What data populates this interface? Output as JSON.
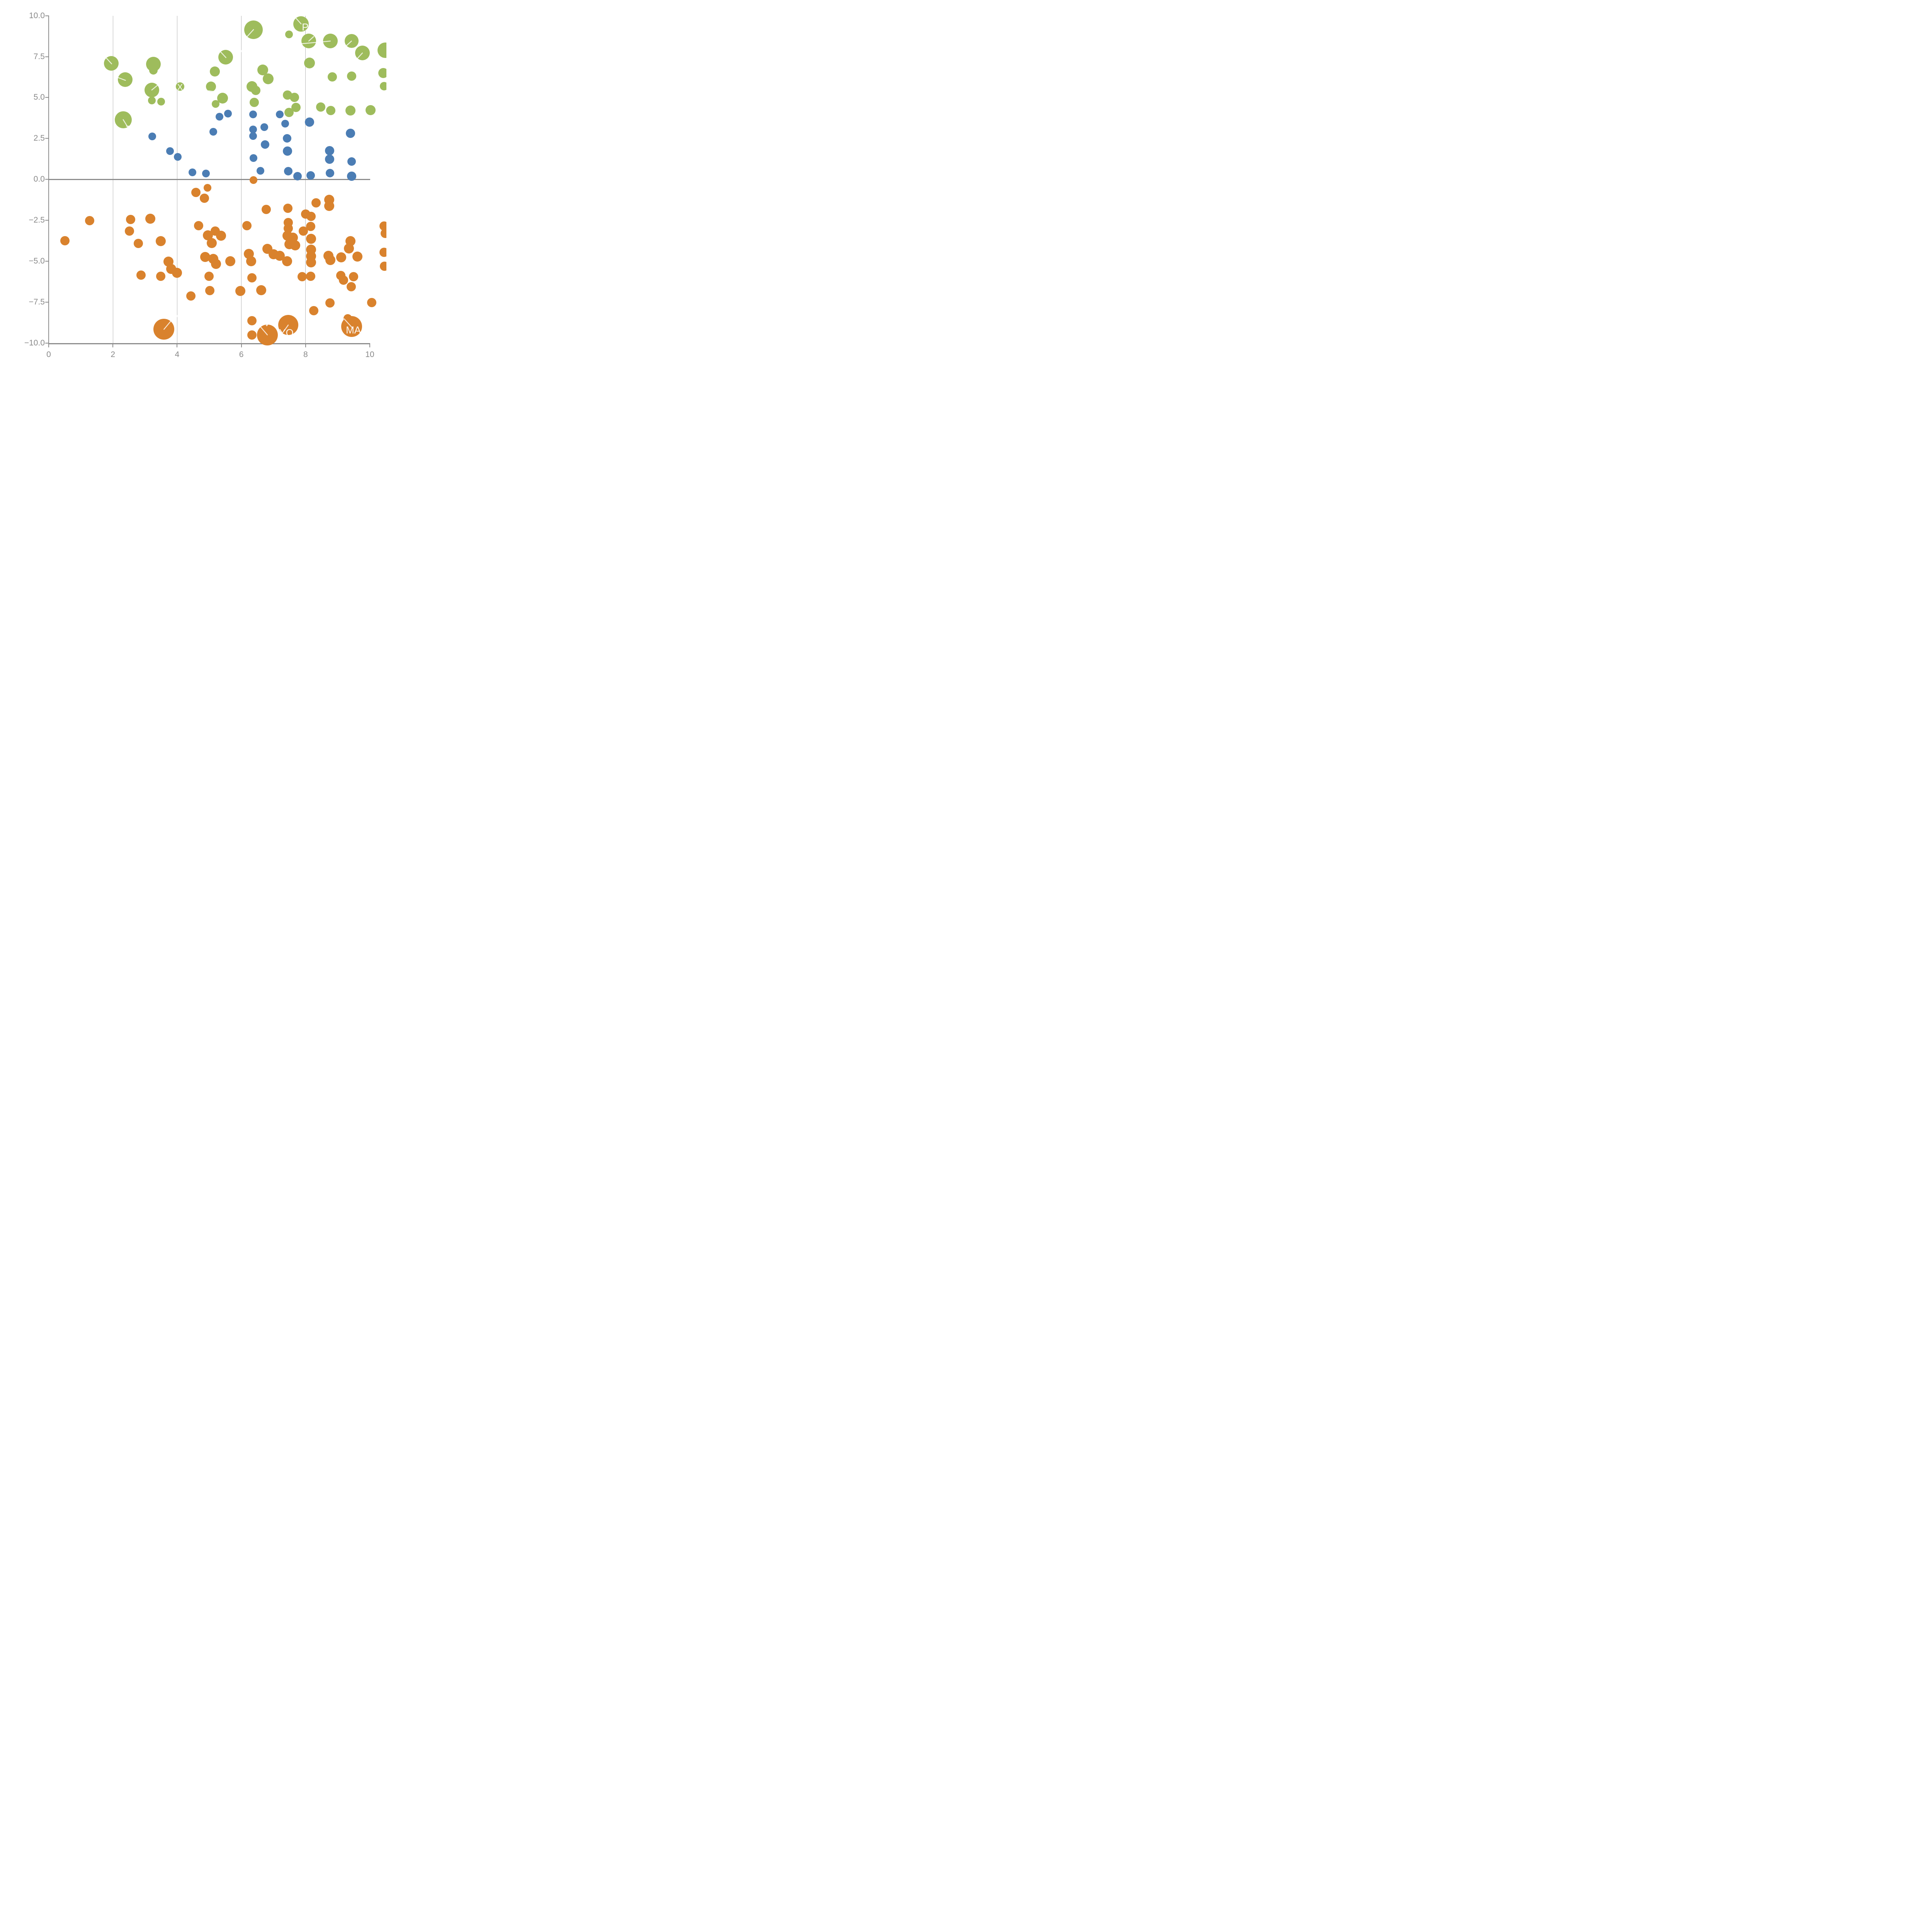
{
  "chart_data": {
    "type": "scatter",
    "title": "",
    "xlabel": "",
    "ylabel": "",
    "xlim": [
      0,
      10
    ],
    "ylim": [
      -10,
      10
    ],
    "x_ticks": [
      "0",
      "2",
      "4",
      "6",
      "8",
      "10"
    ],
    "x_tick_values": [
      0,
      2,
      4,
      6,
      8,
      10
    ],
    "y_ticks": [
      "10.0",
      "7.5",
      "5.0",
      "2.5",
      "0.0",
      "−2.5",
      "−5.0",
      "−7.5",
      "−10.0"
    ],
    "y_tick_values": [
      10,
      7.5,
      5,
      2.5,
      0,
      -2.5,
      -5,
      -7.5,
      -10
    ],
    "gridlines_x": [
      2,
      4,
      6,
      8
    ],
    "zero_line_y": 0,
    "grid": "vertical-only",
    "legend": "none",
    "colors": {
      "green": "#9ebc5c",
      "blue": "#4b7db4",
      "orange": "#d9822d",
      "axis": "#8c8c8c",
      "grid": "#b4b4b4",
      "label_white": "#ffffff"
    },
    "series": [
      {
        "name": "green-cluster",
        "color": "#9ebc5c",
        "points": [
          [
            1.95,
            7.09,
            19
          ],
          [
            2.38,
            6.09,
            19
          ],
          [
            2.32,
            3.65,
            22
          ],
          [
            3.26,
            7.04,
            19
          ],
          [
            3.26,
            6.66,
            11
          ],
          [
            3.21,
            5.46,
            19
          ],
          [
            3.21,
            4.82,
            10
          ],
          [
            3.5,
            4.75,
            10
          ],
          [
            4.09,
            5.67,
            11
          ],
          [
            5.2,
            4.6,
            10
          ],
          [
            5.51,
            7.47,
            19
          ],
          [
            5.18,
            6.58,
            13
          ],
          [
            5.06,
            5.67,
            13
          ],
          [
            5.41,
            4.97,
            14
          ],
          [
            6.38,
            9.15,
            24
          ],
          [
            6.67,
            6.69,
            14
          ],
          [
            6.83,
            6.14,
            14
          ],
          [
            6.33,
            5.67,
            14
          ],
          [
            6.45,
            5.44,
            12
          ],
          [
            6.4,
            4.71,
            12
          ],
          [
            7.48,
            8.85,
            10
          ],
          [
            7.86,
            9.5,
            20
          ],
          [
            8.1,
            8.45,
            19
          ],
          [
            8.77,
            8.45,
            19
          ],
          [
            9.43,
            8.45,
            18
          ],
          [
            9.77,
            7.72,
            19
          ],
          [
            8.12,
            7.1,
            14
          ],
          [
            8.83,
            6.27,
            12
          ],
          [
            9.44,
            6.3,
            12
          ],
          [
            7.44,
            5.15,
            12
          ],
          [
            7.65,
            5.02,
            12
          ],
          [
            7.7,
            4.4,
            12
          ],
          [
            7.48,
            4.09,
            12
          ],
          [
            8.47,
            4.42,
            12
          ],
          [
            8.78,
            4.2,
            12
          ],
          [
            9.4,
            4.2,
            13
          ],
          [
            10.02,
            4.23,
            13
          ],
          [
            10.48,
            7.9,
            20
          ],
          [
            10.42,
            6.5,
            13
          ],
          [
            10.45,
            5.7,
            11
          ]
        ]
      },
      {
        "name": "blue-cluster",
        "color": "#4b7db4",
        "points": [
          [
            3.22,
            2.63,
            10
          ],
          [
            3.78,
            1.72,
            10
          ],
          [
            4.02,
            1.38,
            10
          ],
          [
            4.48,
            0.43,
            10
          ],
          [
            4.9,
            0.37,
            10
          ],
          [
            5.32,
            3.83,
            10
          ],
          [
            5.58,
            4.01,
            10
          ],
          [
            5.13,
            2.9,
            10
          ],
          [
            6.37,
            3.96,
            10
          ],
          [
            6.37,
            3.05,
            10
          ],
          [
            6.37,
            2.64,
            10
          ],
          [
            6.72,
            3.18,
            10
          ],
          [
            6.74,
            2.14,
            11
          ],
          [
            6.38,
            1.31,
            10
          ],
          [
            6.6,
            0.53,
            10
          ],
          [
            7.36,
            3.4,
            10
          ],
          [
            7.2,
            3.96,
            10
          ],
          [
            7.42,
            2.5,
            11
          ],
          [
            7.44,
            1.72,
            12
          ],
          [
            7.46,
            0.5,
            11
          ],
          [
            7.75,
            0.2,
            11
          ],
          [
            8.12,
            3.5,
            12
          ],
          [
            8.16,
            0.25,
            11
          ],
          [
            8.75,
            1.75,
            12
          ],
          [
            8.75,
            1.23,
            12
          ],
          [
            8.76,
            0.38,
            11
          ],
          [
            9.4,
            2.82,
            12
          ],
          [
            9.44,
            1.08,
            11
          ],
          [
            9.44,
            0.19,
            12
          ]
        ]
      },
      {
        "name": "orange-cluster",
        "color": "#d9822d",
        "points": [
          [
            0.5,
            -3.76,
            12
          ],
          [
            1.27,
            -2.52,
            12
          ],
          [
            2.55,
            -2.46,
            12
          ],
          [
            2.51,
            -3.16,
            12
          ],
          [
            3.17,
            -2.4,
            13
          ],
          [
            2.79,
            -3.91,
            12
          ],
          [
            3.49,
            -3.78,
            13
          ],
          [
            3.73,
            -5.03,
            13
          ],
          [
            3.82,
            -5.47,
            13
          ],
          [
            2.88,
            -5.86,
            12
          ],
          [
            3.49,
            -5.91,
            12
          ],
          [
            4.0,
            -5.7,
            13
          ],
          [
            4.59,
            -0.79,
            12
          ],
          [
            4.85,
            -1.16,
            12
          ],
          [
            4.94,
            -0.51,
            10
          ],
          [
            4.67,
            -2.82,
            12
          ],
          [
            4.96,
            -3.42,
            13
          ],
          [
            5.08,
            -3.88,
            13
          ],
          [
            5.19,
            -3.15,
            12
          ],
          [
            5.37,
            -3.44,
            13
          ],
          [
            4.87,
            -4.74,
            13
          ],
          [
            5.13,
            -4.87,
            13
          ],
          [
            5.21,
            -5.16,
            13
          ],
          [
            4.99,
            -5.91,
            12
          ],
          [
            5.02,
            -6.8,
            12
          ],
          [
            4.43,
            -7.13,
            12
          ],
          [
            5.65,
            -5.0,
            13
          ],
          [
            6.17,
            -2.82,
            12
          ],
          [
            6.78,
            -1.83,
            12
          ],
          [
            7.45,
            -1.76,
            12
          ],
          [
            6.38,
            -0.04,
            10
          ],
          [
            6.23,
            -4.56,
            13
          ],
          [
            6.31,
            -5.0,
            13
          ],
          [
            6.81,
            -4.25,
            13
          ],
          [
            7.0,
            -4.58,
            13
          ],
          [
            7.2,
            -4.66,
            13
          ],
          [
            7.42,
            -5.0,
            13
          ],
          [
            7.46,
            -2.64,
            12
          ],
          [
            7.46,
            -3.0,
            12
          ],
          [
            7.44,
            -3.44,
            13
          ],
          [
            7.61,
            -3.57,
            13
          ],
          [
            7.5,
            -3.96,
            13
          ],
          [
            7.68,
            -4.03,
            13
          ],
          [
            6.33,
            -6.02,
            12
          ],
          [
            5.97,
            -6.82,
            13
          ],
          [
            6.62,
            -6.78,
            13
          ],
          [
            7.9,
            -5.95,
            12
          ],
          [
            8.16,
            -5.91,
            12
          ],
          [
            8.0,
            -2.12,
            12
          ],
          [
            8.17,
            -2.25,
            12
          ],
          [
            8.16,
            -2.87,
            12
          ],
          [
            7.93,
            -3.17,
            12
          ],
          [
            8.17,
            -3.63,
            13
          ],
          [
            8.17,
            -4.28,
            13
          ],
          [
            8.17,
            -4.7,
            13
          ],
          [
            8.17,
            -5.08,
            13
          ],
          [
            8.33,
            -1.44,
            12
          ],
          [
            8.74,
            -1.24,
            13
          ],
          [
            8.74,
            -1.63,
            13
          ],
          [
            8.71,
            -4.66,
            13
          ],
          [
            8.77,
            -4.92,
            13
          ],
          [
            9.11,
            -4.76,
            13
          ],
          [
            9.62,
            -4.71,
            13
          ],
          [
            9.4,
            -3.78,
            13
          ],
          [
            9.35,
            -4.22,
            13
          ],
          [
            9.1,
            -5.88,
            12
          ],
          [
            9.18,
            -6.15,
            12
          ],
          [
            9.42,
            -6.55,
            12
          ],
          [
            9.5,
            -5.95,
            12
          ],
          [
            8.25,
            -8.01,
            12
          ],
          [
            8.76,
            -7.54,
            12
          ],
          [
            10.06,
            -7.52,
            12
          ],
          [
            10.45,
            -2.85,
            12
          ],
          [
            10.48,
            -3.3,
            12
          ],
          [
            10.44,
            -4.45,
            12
          ],
          [
            10.46,
            -5.3,
            12
          ],
          [
            9.31,
            -8.5,
            11
          ],
          [
            3.59,
            -9.16,
            27
          ],
          [
            6.81,
            -9.5,
            27
          ],
          [
            7.46,
            -8.9,
            26
          ],
          [
            9.43,
            -8.98,
            27
          ],
          [
            6.33,
            -8.64,
            12
          ],
          [
            6.33,
            -9.52,
            12
          ]
        ]
      }
    ],
    "annotations": [
      {
        "text": "P",
        "x": 7.99,
        "y": 9.3,
        "size": 26
      },
      {
        "text": "rs",
        "x": 9.52,
        "y": 7.08,
        "size": 24
      },
      {
        "text": "X",
        "x": 4.09,
        "y": 5.63,
        "size": 22
      },
      {
        "text": "T",
        "x": 2.49,
        "y": 3.04,
        "size": 24
      },
      {
        "text": "M",
        "x": 3.56,
        "y": -8.28,
        "size": 26
      },
      {
        "text": "YO",
        "x": 7.4,
        "y": -9.36,
        "size": 26
      },
      {
        "text": "MA",
        "x": 9.49,
        "y": -9.2,
        "size": 26
      }
    ],
    "leader_lines": [
      [
        1.8,
        7.4,
        1.96,
        7.06,
        2.4
      ],
      [
        2.16,
        6.22,
        2.39,
        6.05,
        2.4
      ],
      [
        2.32,
        3.65,
        2.46,
        3.2,
        2.4
      ],
      [
        3.21,
        5.46,
        3.42,
        5.8,
        2.4
      ],
      [
        5.35,
        7.8,
        5.52,
        7.44,
        2.4
      ],
      [
        6.38,
        9.15,
        6.17,
        8.7,
        2.4
      ],
      [
        7.7,
        9.85,
        7.86,
        9.5,
        2.4
      ],
      [
        8.1,
        8.45,
        8.25,
        8.72,
        2.4
      ],
      [
        8.77,
        8.45,
        7.73,
        8.26,
        2.4
      ],
      [
        9.43,
        8.45,
        9.28,
        8.18,
        2.4
      ],
      [
        9.77,
        7.72,
        9.55,
        7.25,
        2.4
      ],
      [
        3.59,
        -9.16,
        3.82,
        -8.62,
        2.4
      ],
      [
        6.81,
        -9.5,
        6.58,
        -8.97,
        2.4
      ],
      [
        7.46,
        -8.9,
        7.33,
        -9.26,
        2.4
      ],
      [
        9.2,
        -8.52,
        9.47,
        -9.1,
        2.4
      ],
      [
        5.95,
        7.86,
        6.12,
        7.78,
        5
      ],
      [
        4.98,
        5.38,
        5.12,
        5.34,
        5
      ],
      [
        3.95,
        -8.37,
        4.06,
        -8.33,
        5
      ],
      [
        6.79,
        -8.92,
        6.82,
        -8.82,
        4
      ]
    ]
  }
}
